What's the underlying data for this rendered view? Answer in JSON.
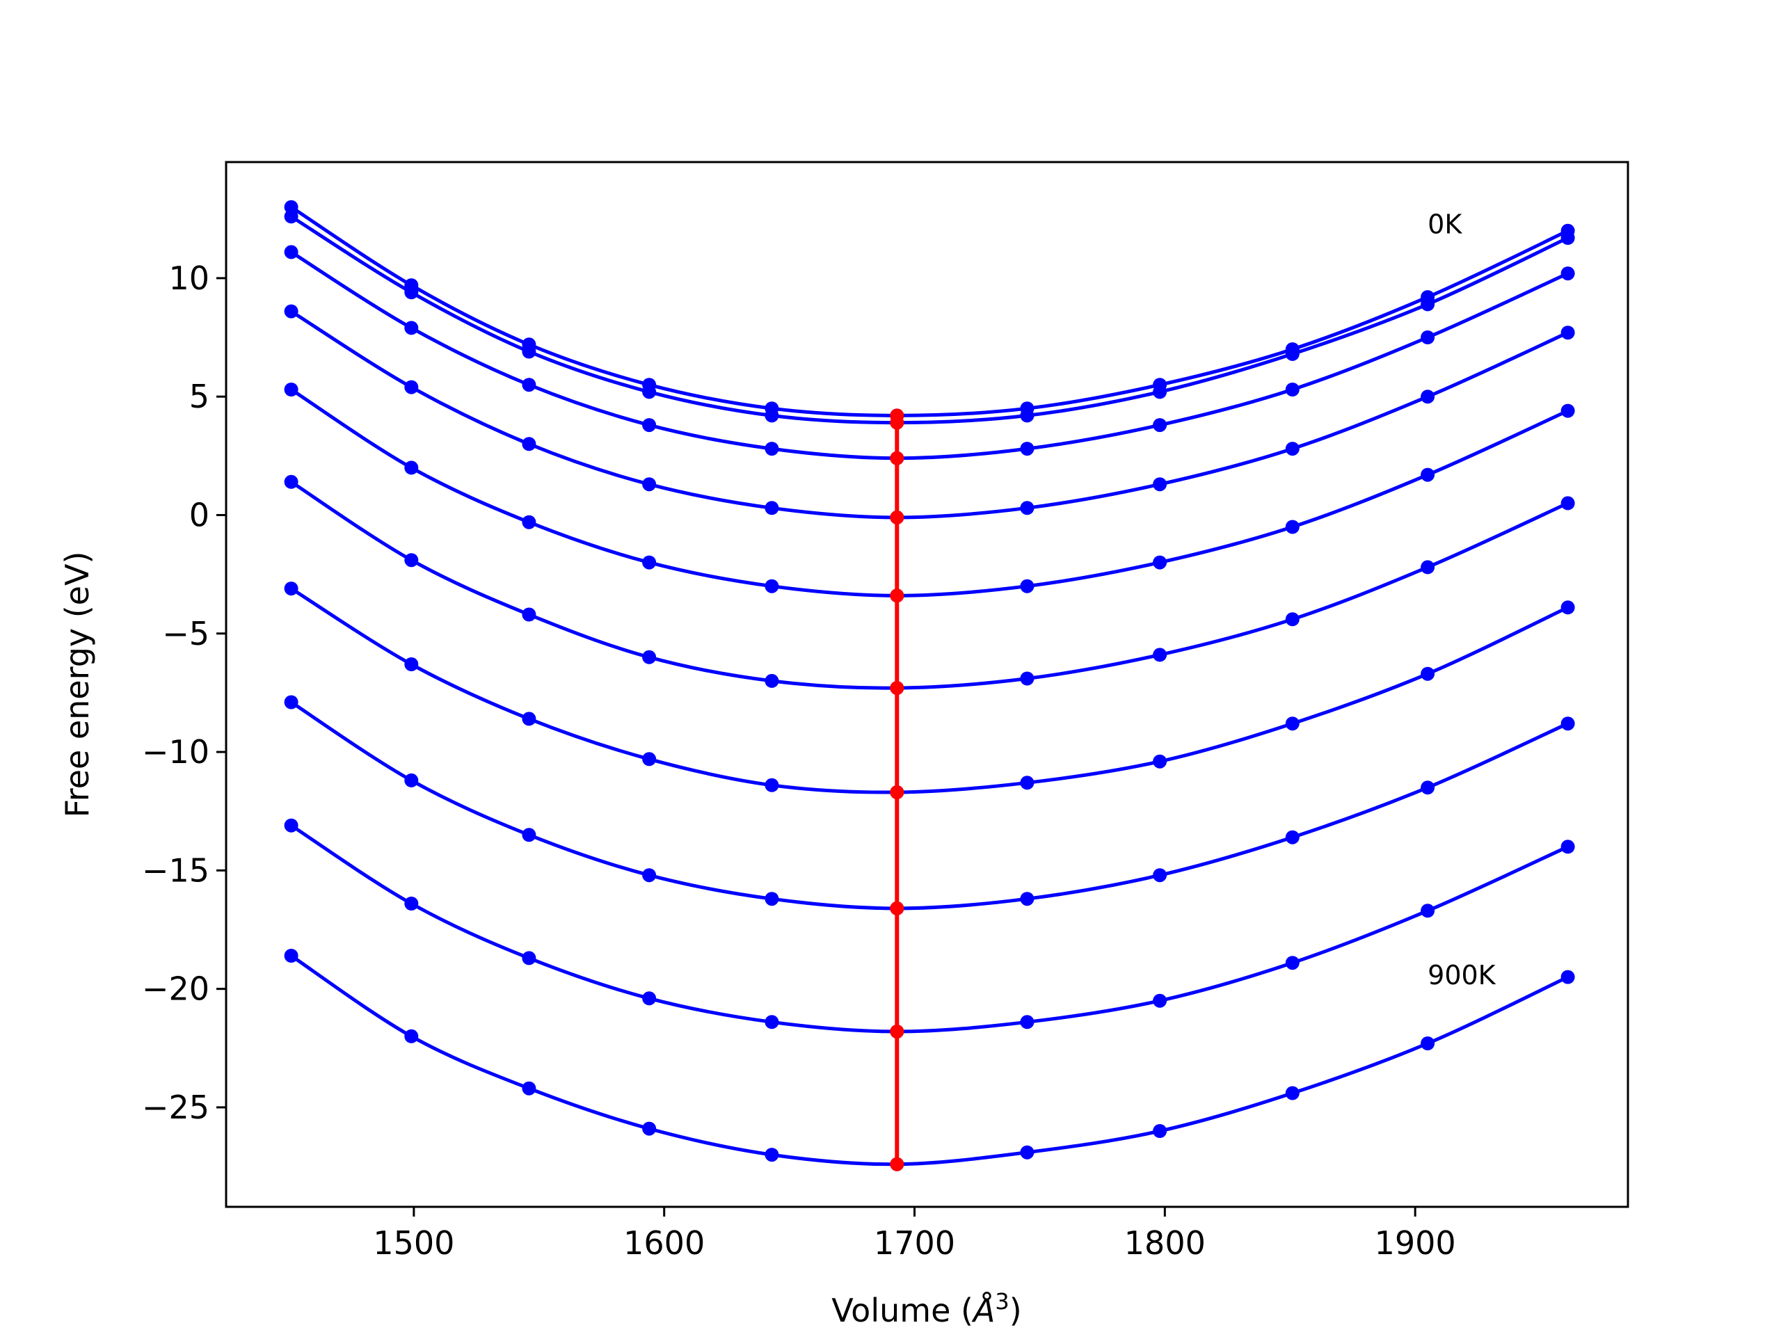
{
  "chart_data": {
    "type": "line",
    "xlabel": "Volume (",
    "xlabel_unit": "Å",
    "xlabel_sup": "3",
    "xlabel_close": ")",
    "ylabel": "Free energy (eV)",
    "xlim": [
      1425,
      1985
    ],
    "ylim": [
      -29.2,
      14.9
    ],
    "xticks": [
      1500,
      1600,
      1700,
      1800,
      1900
    ],
    "xtick_labels": [
      "1500",
      "1600",
      "1700",
      "1800",
      "1900"
    ],
    "yticks": [
      10,
      5,
      0,
      -5,
      -10,
      -15,
      -20,
      -25
    ],
    "ytick_labels": [
      "10",
      "5",
      "0",
      "−5",
      "−10",
      "−15",
      "−20",
      "−25"
    ],
    "grid": false,
    "annotations": [
      {
        "text": "0K",
        "x": 1905,
        "y": 12.3
      },
      {
        "text": "900K",
        "x": 1905,
        "y": -19.4
      }
    ],
    "series_color": "#0000ff",
    "min_line_color": "#ff0000",
    "x": [
      1451,
      1499,
      1546,
      1594,
      1643,
      1693,
      1745,
      1798,
      1851,
      1905,
      1961
    ],
    "series": [
      {
        "values": [
          13.0,
          9.7,
          7.2,
          5.5,
          4.5,
          4.2,
          4.5,
          5.5,
          7.0,
          9.2,
          12.0
        ],
        "min": [
          1693,
          4.2
        ]
      },
      {
        "values": [
          12.6,
          9.4,
          6.9,
          5.2,
          4.2,
          3.9,
          4.2,
          5.2,
          6.8,
          8.9,
          11.7
        ],
        "min": [
          1693,
          3.9
        ]
      },
      {
        "values": [
          11.1,
          7.9,
          5.5,
          3.8,
          2.8,
          2.4,
          2.8,
          3.8,
          5.3,
          7.5,
          10.2
        ],
        "min": [
          1693,
          2.4
        ]
      },
      {
        "values": [
          8.6,
          5.4,
          3.0,
          1.3,
          0.3,
          -0.1,
          0.3,
          1.3,
          2.8,
          5.0,
          7.7
        ],
        "min": [
          1693,
          -0.1
        ]
      },
      {
        "values": [
          5.3,
          2.0,
          -0.3,
          -2.0,
          -3.0,
          -3.4,
          -3.0,
          -2.0,
          -0.5,
          1.7,
          4.4
        ],
        "min": [
          1693,
          -3.4
        ]
      },
      {
        "values": [
          1.4,
          -1.9,
          -4.2,
          -6.0,
          -7.0,
          -7.3,
          -6.9,
          -5.9,
          -4.4,
          -2.2,
          0.5
        ],
        "min": [
          1693,
          -7.3
        ]
      },
      {
        "values": [
          -3.1,
          -6.3,
          -8.6,
          -10.3,
          -11.4,
          -11.7,
          -11.3,
          -10.4,
          -8.8,
          -6.7,
          -3.9
        ],
        "min": [
          1693,
          -11.7
        ]
      },
      {
        "values": [
          -7.9,
          -11.2,
          -13.5,
          -15.2,
          -16.2,
          -16.6,
          -16.2,
          -15.2,
          -13.6,
          -11.5,
          -8.8
        ],
        "min": [
          1693,
          -16.6
        ]
      },
      {
        "values": [
          -13.1,
          -16.4,
          -18.7,
          -20.4,
          -21.4,
          -21.8,
          -21.4,
          -20.5,
          -18.9,
          -16.7,
          -14.0
        ],
        "min": [
          1693,
          -21.8
        ]
      },
      {
        "values": [
          -18.6,
          -22.0,
          -24.2,
          -25.9,
          -27.0,
          -27.4,
          -26.9,
          -26.0,
          -24.4,
          -22.3,
          -19.5
        ],
        "min": [
          1693,
          -27.4
        ]
      }
    ]
  }
}
